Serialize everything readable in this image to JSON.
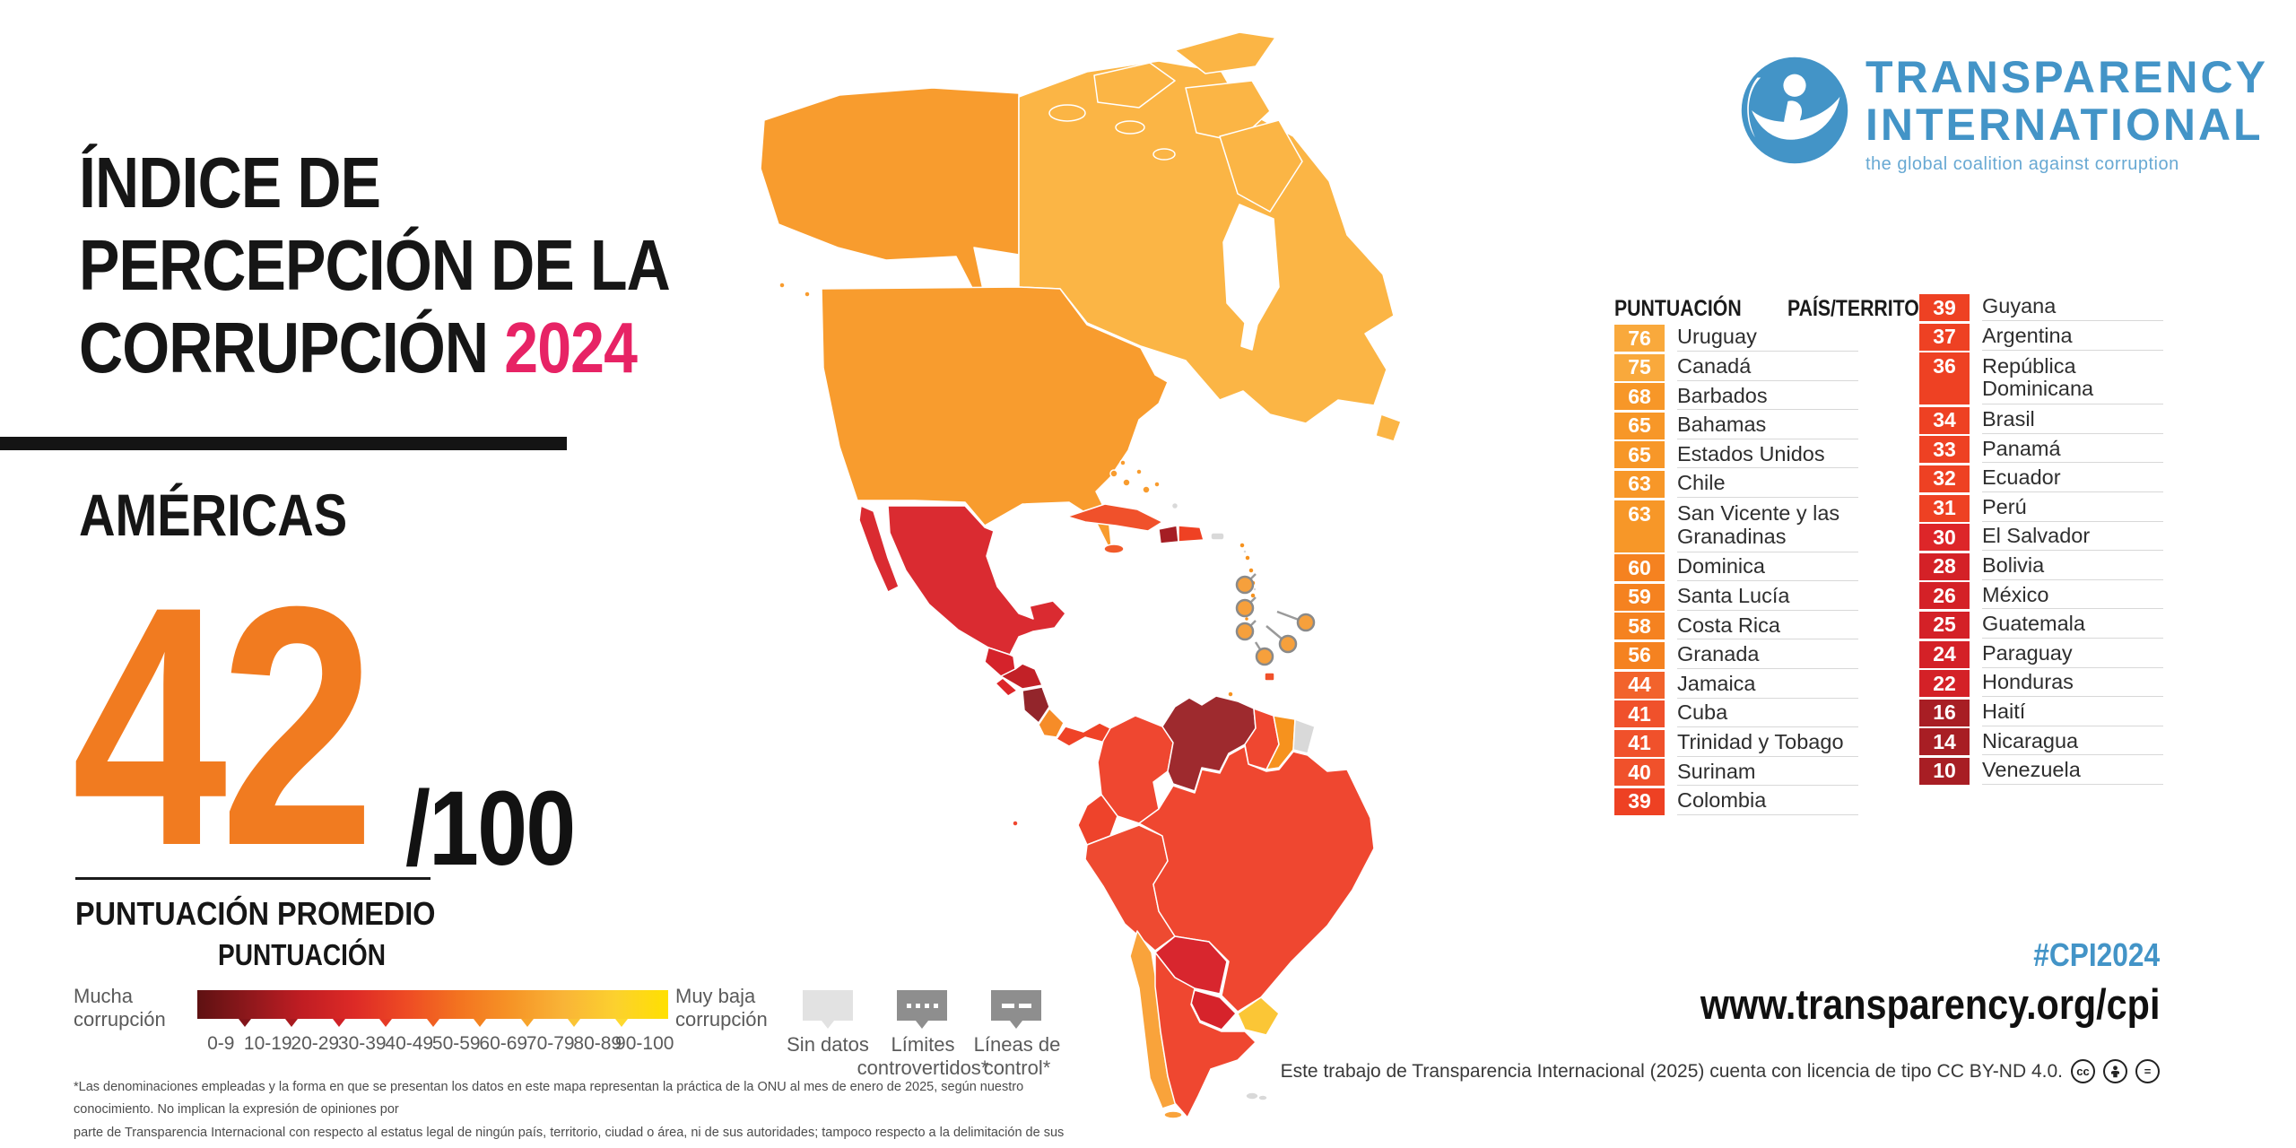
{
  "header": {
    "title_line1": "ÍNDICE DE",
    "title_line2": "PERCEPCIÓN DE LA",
    "title_line3": "CORRUPCIÓN",
    "title_year": "2024",
    "year_color": "#e72365",
    "region": "AMÉRICAS",
    "score": "42",
    "score_suffix": "/100",
    "score_color": "#f17b20",
    "score_caption": "PUNTUACIÓN PROMEDIO"
  },
  "logo": {
    "name_line1": "TRANSPARENCY",
    "name_line2": "INTERNATIONAL",
    "tagline": "the global coalition against corruption",
    "brand_color": "#4394c7"
  },
  "table": {
    "header_score": "PUNTUACIÓN",
    "header_country": "PAÍS/TERRITORIO",
    "column1": [
      {
        "score": "76",
        "name": "Uruguay",
        "color": "#f9a93c"
      },
      {
        "score": "75",
        "name": "Canadá",
        "color": "#f9a93c"
      },
      {
        "score": "68",
        "name": "Barbados",
        "color": "#f79728"
      },
      {
        "score": "65",
        "name": "Bahamas",
        "color": "#f79728"
      },
      {
        "score": "65",
        "name": "Estados Unidos",
        "color": "#f79728"
      },
      {
        "score": "63",
        "name": "Chile",
        "color": "#f79728"
      },
      {
        "score": "63",
        "name": "San Vicente y las Granadinas",
        "color": "#f79728",
        "tall": true
      },
      {
        "score": "60",
        "name": "Dominica",
        "color": "#f58220"
      },
      {
        "score": "59",
        "name": "Santa Lucía",
        "color": "#f58220"
      },
      {
        "score": "58",
        "name": "Costa Rica",
        "color": "#f58220"
      },
      {
        "score": "56",
        "name": "Granada",
        "color": "#f58220"
      },
      {
        "score": "44",
        "name": "Jamaica",
        "color": "#f2632c"
      },
      {
        "score": "41",
        "name": "Cuba",
        "color": "#f0512b"
      },
      {
        "score": "41",
        "name": "Trinidad y Tobago",
        "color": "#f0512b"
      },
      {
        "score": "40",
        "name": "Surinam",
        "color": "#f0512b"
      },
      {
        "score": "39",
        "name": "Colombia",
        "color": "#ee4123"
      }
    ],
    "column2": [
      {
        "score": "39",
        "name": "Guyana",
        "color": "#ee4123"
      },
      {
        "score": "37",
        "name": "Argentina",
        "color": "#ee4123"
      },
      {
        "score": "36",
        "name": "República Dominicana",
        "color": "#ee4123",
        "tall": true
      },
      {
        "score": "34",
        "name": "Brasil",
        "color": "#ee4123"
      },
      {
        "score": "33",
        "name": "Panamá",
        "color": "#ee4123"
      },
      {
        "score": "32",
        "name": "Ecuador",
        "color": "#ee4123"
      },
      {
        "score": "31",
        "name": "Perú",
        "color": "#ee4123"
      },
      {
        "score": "30",
        "name": "El Salvador",
        "color": "#dd2629"
      },
      {
        "score": "28",
        "name": "Bolivia",
        "color": "#d42127"
      },
      {
        "score": "26",
        "name": "México",
        "color": "#d42127"
      },
      {
        "score": "25",
        "name": "Guatemala",
        "color": "#d42127"
      },
      {
        "score": "24",
        "name": "Paraguay",
        "color": "#d42127"
      },
      {
        "score": "22",
        "name": "Honduras",
        "color": "#d42127"
      },
      {
        "score": "16",
        "name": "Haití",
        "color": "#a81e24"
      },
      {
        "score": "14",
        "name": "Nicaragua",
        "color": "#a81e24"
      },
      {
        "score": "10",
        "name": "Venezuela",
        "color": "#a81e24"
      }
    ]
  },
  "legend": {
    "title": "PUNTUACIÓN",
    "left_label_line1": "Mucha",
    "left_label_line2": "corrupción",
    "right_label_line1": "Muy baja",
    "right_label_line2": "corrupción",
    "ranges": [
      "0-9",
      "10-19",
      "20-29",
      "30-39",
      "40-49",
      "50-59",
      "60-69",
      "70-79",
      "80-89",
      "90-100"
    ],
    "gradient": [
      "#5e1112",
      "#8f181c",
      "#c01d23",
      "#dd2a26",
      "#ee4b24",
      "#f37320",
      "#f69426",
      "#f9b437",
      "#fcd12e",
      "#ffe000"
    ],
    "tick_colors": [
      "#82151a",
      "#a81a1f",
      "#d02127",
      "#e63a26",
      "#f05f22",
      "#f48320",
      "#f7a42c",
      "#fac435",
      "#fed92f"
    ],
    "no_data_label": "Sin datos",
    "disputed_label_line1": "Límites",
    "disputed_label_line2": "controvertidos*",
    "control_label_line1": "Líneas de",
    "control_label_line2": "control*"
  },
  "footer": {
    "hashtag": "#CPI2024",
    "website": "www.transparency.org/cpi",
    "license": "Este trabajo de Transparencia Internacional (2025) cuenta con licencia de tipo CC BY-ND 4.0.",
    "disclaimer_line1": "*Las denominaciones empleadas y la forma en que se presentan los datos en este mapa representan la práctica de la ONU al mes de enero de 2025, según nuestro conocimiento. No implican la expresión de opiniones por",
    "disclaimer_line2": "parte de Transparencia Internacional con respecto al estatus legal de ningún país, territorio, ciudad o área, ni de sus autoridades; tampoco respecto a la delimitación de sus fronteras o límites."
  },
  "map": {
    "fills": {
      "canada": "#fbb545",
      "usa": "#f89c2e",
      "mexico": "#da2b31",
      "guatemala": "#d5232b",
      "honduras": "#c22127",
      "el-salvador": "#dd2629",
      "nicaragua": "#93252b",
      "costa-rica": "#f68c28",
      "panama": "#ef4327",
      "cuba": "#f0512b",
      "jamaica": "#f15b2b",
      "haiti": "#a51e24",
      "dominican-republic": "#ef4123",
      "puerto-rico": "#d9d9d9",
      "bahamas": "#f89c2e",
      "colombia": "#ef4730",
      "venezuela": "#9e2a2e",
      "guyana": "#ef4730",
      "suriname": "#f6921e",
      "french-guiana": "#d9d9d9",
      "ecuador": "#ee432b",
      "peru": "#ee4a31",
      "brazil": "#ef4730",
      "bolivia": "#d8262e",
      "paraguay": "#d6232b",
      "chile": "#f9a33b",
      "argentina": "#ef4730",
      "uruguay": "#fbc636",
      "falklands": "#d9d9d9",
      "gray-island": "#d9d9d9",
      "antilles": "#f6921e",
      "trinidad": "#f0512b",
      "galapagos": "#ef4730",
      "antilles-marker": "#f6a03c"
    }
  }
}
